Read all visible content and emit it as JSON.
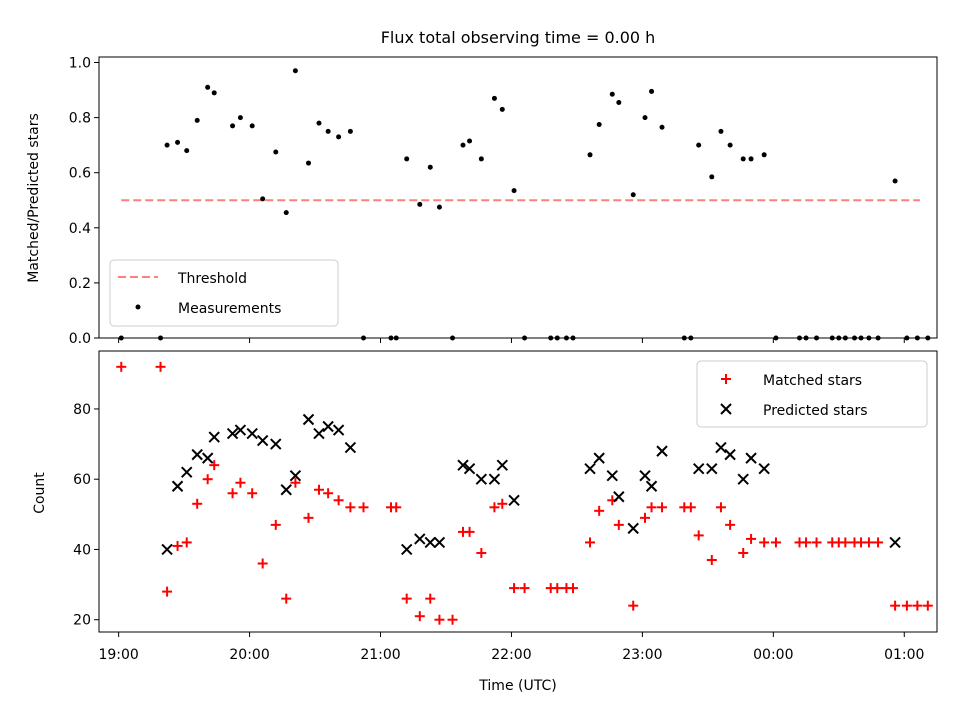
{
  "chart_data": [
    {
      "type": "scatter",
      "title": "Flux total observing time = 0.00 h",
      "xlabel": "",
      "ylabel": "Matched/Predicted stars",
      "xlim": [
        18.85,
        1.25
      ],
      "ylim": [
        0.0,
        1.02
      ],
      "yticks": [
        0.0,
        0.2,
        0.4,
        0.6,
        0.8,
        1.0
      ],
      "ytick_labels": [
        "0.0",
        "0.2",
        "0.4",
        "0.6",
        "0.8",
        "1.0"
      ],
      "legend_position": "lower-left",
      "threshold": {
        "name": "Threshold",
        "value": 0.5,
        "x_range": [
          19.02,
          1.12
        ],
        "color": "#ff7f7f"
      },
      "series": [
        {
          "name": "Measurements",
          "marker": "dot",
          "color": "#000000",
          "x": [
            19.02,
            19.32,
            19.37,
            19.45,
            19.52,
            19.6,
            19.68,
            19.73,
            19.87,
            19.93,
            20.02,
            20.1,
            20.2,
            20.28,
            20.35,
            20.45,
            20.53,
            20.6,
            20.68,
            20.77,
            20.87,
            21.08,
            21.12,
            21.2,
            21.3,
            21.38,
            21.45,
            21.55,
            21.63,
            21.68,
            21.77,
            21.87,
            21.93,
            22.02,
            22.1,
            22.3,
            22.35,
            22.42,
            22.47,
            22.6,
            22.67,
            22.77,
            22.82,
            22.93,
            23.02,
            23.07,
            23.15,
            23.32,
            23.37,
            23.43,
            23.53,
            23.6,
            23.67,
            23.77,
            23.83,
            23.93,
            24.02,
            24.2,
            24.25,
            24.33,
            24.45,
            24.5,
            24.55,
            24.62,
            24.67,
            24.73,
            24.8,
            24.93,
            25.02,
            25.1,
            25.18
          ],
          "y": [
            0.0,
            0.0,
            0.7,
            0.71,
            0.68,
            0.79,
            0.91,
            0.89,
            0.77,
            0.8,
            0.77,
            0.505,
            0.675,
            0.455,
            0.97,
            0.635,
            0.78,
            0.75,
            0.73,
            0.75,
            0.0,
            0.0,
            0.0,
            0.65,
            0.485,
            0.62,
            0.475,
            0.0,
            0.7,
            0.715,
            0.65,
            0.87,
            0.83,
            0.535,
            0.0,
            0.0,
            0.0,
            0.0,
            0.0,
            0.665,
            0.775,
            0.885,
            0.855,
            0.52,
            0.8,
            0.895,
            0.765,
            0.0,
            0.0,
            0.7,
            0.585,
            0.75,
            0.7,
            0.65,
            0.65,
            0.665,
            0.0,
            0.0,
            0.0,
            0.0,
            0.0,
            0.0,
            0.0,
            0.0,
            0.0,
            0.0,
            0.0,
            0.57,
            0.0,
            0.0,
            0.0
          ]
        }
      ]
    },
    {
      "type": "scatter",
      "title": "",
      "xlabel": "Time (UTC)",
      "ylabel": "Count",
      "xlim": [
        18.85,
        1.25
      ],
      "ylim": [
        16.5,
        96.5
      ],
      "yticks": [
        20,
        40,
        60,
        80
      ],
      "ytick_labels": [
        "20",
        "40",
        "60",
        "80"
      ],
      "xticks": [
        19,
        20,
        21,
        22,
        23,
        24,
        25
      ],
      "xtick_labels": [
        "19:00",
        "20:00",
        "21:00",
        "22:00",
        "23:00",
        "00:00",
        "01:00"
      ],
      "legend_position": "upper-right",
      "series": [
        {
          "name": "Matched stars",
          "marker": "plus",
          "color": "#ff0000",
          "x": [
            19.02,
            19.32,
            19.37,
            19.45,
            19.52,
            19.6,
            19.68,
            19.73,
            19.87,
            19.93,
            20.02,
            20.1,
            20.2,
            20.28,
            20.35,
            20.45,
            20.53,
            20.6,
            20.68,
            20.77,
            20.87,
            21.08,
            21.12,
            21.2,
            21.3,
            21.38,
            21.45,
            21.55,
            21.63,
            21.68,
            21.77,
            21.87,
            21.93,
            22.02,
            22.1,
            22.3,
            22.35,
            22.42,
            22.47,
            22.6,
            22.67,
            22.77,
            22.82,
            22.93,
            23.02,
            23.07,
            23.15,
            23.32,
            23.37,
            23.43,
            23.53,
            23.6,
            23.67,
            23.77,
            23.83,
            23.93,
            24.02,
            24.2,
            24.25,
            24.33,
            24.45,
            24.5,
            24.55,
            24.62,
            24.67,
            24.73,
            24.8,
            24.93,
            25.02,
            25.1,
            25.18
          ],
          "y": [
            92,
            92,
            28,
            41,
            42,
            53,
            60,
            64,
            56,
            59,
            56,
            36,
            47,
            26,
            59,
            49,
            57,
            56,
            54,
            52,
            52,
            52,
            52,
            26,
            21,
            26,
            20,
            20,
            45,
            45,
            39,
            52,
            53,
            29,
            29,
            29,
            29,
            29,
            29,
            42,
            51,
            54,
            47,
            24,
            49,
            52,
            52,
            52,
            52,
            44,
            37,
            52,
            47,
            39,
            43,
            42,
            42,
            42,
            42,
            42,
            42,
            42,
            42,
            42,
            42,
            42,
            42,
            24,
            24,
            24,
            24
          ]
        },
        {
          "name": "Predicted stars",
          "marker": "x",
          "color": "#000000",
          "x": [
            19.37,
            19.45,
            19.52,
            19.6,
            19.68,
            19.73,
            19.87,
            19.93,
            20.02,
            20.1,
            20.2,
            20.28,
            20.35,
            20.45,
            20.53,
            20.6,
            20.68,
            20.77,
            21.2,
            21.3,
            21.38,
            21.45,
            21.63,
            21.68,
            21.77,
            21.87,
            21.93,
            22.02,
            22.6,
            22.67,
            22.77,
            22.82,
            22.93,
            23.02,
            23.07,
            23.15,
            23.43,
            23.53,
            23.6,
            23.67,
            23.77,
            23.83,
            23.93,
            24.93
          ],
          "y": [
            40,
            58,
            62,
            67,
            66,
            72,
            73,
            74,
            73,
            71,
            70,
            57,
            61,
            77,
            73,
            75,
            74,
            69,
            40,
            43,
            42,
            42,
            64,
            63,
            60,
            60,
            64,
            54,
            63,
            66,
            61,
            55,
            46,
            61,
            58,
            68,
            63,
            63,
            69,
            67,
            60,
            66,
            63,
            42
          ]
        }
      ]
    }
  ]
}
